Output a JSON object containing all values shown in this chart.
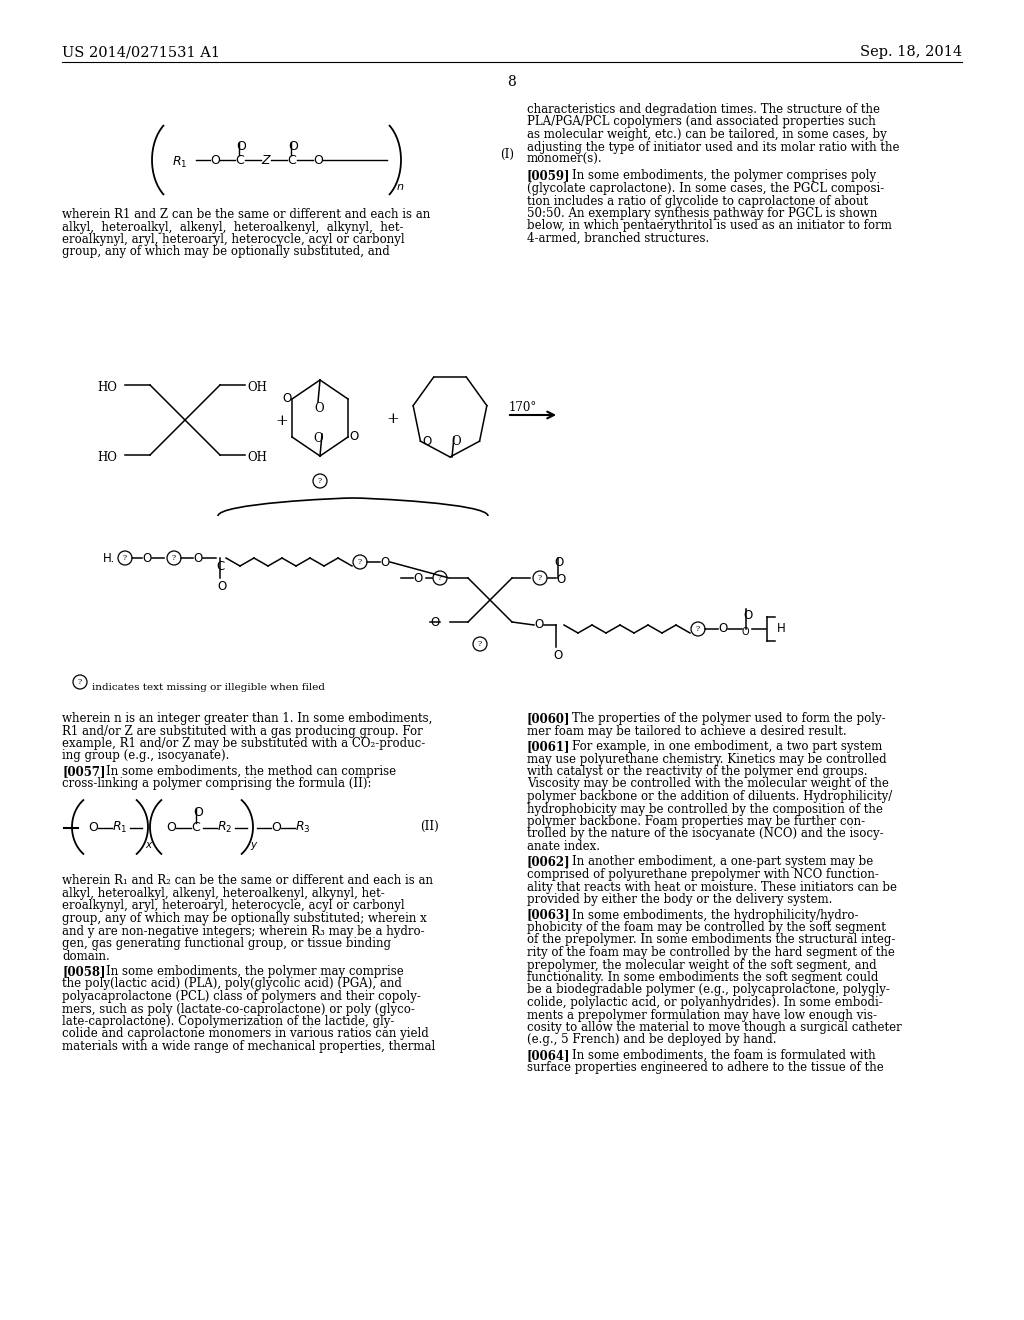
{
  "header_left": "US 2014/0271531 A1",
  "header_right": "Sep. 18, 2014",
  "page_number": "8",
  "background_color": "#ffffff",
  "text_color": "#000000",
  "rc_para1": [
    "characteristics and degradation times. The structure of the",
    "PLA/PGA/PCL copolymers (and associated properties such",
    "as molecular weight, etc.) can be tailored, in some cases, by",
    "adjusting the type of initiator used and its molar ratio with the",
    "monomer(s)."
  ],
  "rc_para2_tag": "[0059]",
  "rc_para2_intro": "In some embodiments, the polymer comprises poly",
  "rc_para2": [
    "(glycolate caprolactone). In some cases, the PGCL composi-",
    "tion includes a ratio of glycolide to caprolactone of about",
    "50:50. An exemplary synthesis pathway for PGCL is shown",
    "below, in which pentaerythritol is used as an initiator to form",
    "4-armed, branched structures."
  ],
  "lc_para1": [
    "wherein R1 and Z can be the same or different and each is an",
    "alkyl,  heteroalkyl,  alkenyl,  heteroalkenyl,  alkynyl,  het-",
    "eroalkynyl, aryl, heteroaryl, heterocycle, acyl or carbonyl",
    "group, any of which may be optionally substituted, and"
  ],
  "legend_text": "indicates text missing or illegible when filed",
  "lc_para3": [
    "wherein n is an integer greater than 1. In some embodiments,",
    "R1 and/or Z are substituted with a gas producing group. For",
    "example, R1 and/or Z may be substituted with a CO₂-produc-",
    "ing group (e.g., isocyanate)."
  ],
  "lc_para3_tag": "[0057]",
  "lc_para3_intro": "In some embodiments, the method can comprise",
  "lc_para3_b": "cross-linking a polymer comprising the formula (II):",
  "lc_para4": [
    "wherein R₁ and R₂ can be the same or different and each is an",
    "alkyl, heteroalkyl, alkenyl, heteroalkenyl, alkynyl, het-",
    "eroalkynyl, aryl, heteroaryl, heterocycle, acyl or carbonyl",
    "group, any of which may be optionally substituted; wherein x",
    "and y are non-negative integers; wherein R₃ may be a hydro-",
    "gen, gas generating functional group, or tissue binding",
    "domain."
  ],
  "lc_para5_tag": "[0058]",
  "lc_para5_intro": "In some embodiments, the polymer may comprise",
  "lc_para5": [
    "the poly(lactic acid) (PLA), poly(glycolic acid) (PGA), and",
    "polyacaprolactone (PCL) class of polymers and their copoly-",
    "mers, such as poly (lactate-co-caprolactone) or poly (glyco-",
    "late-caprolactone). Copolymerization of the lactide, gly-",
    "colide and caprolactone monomers in various ratios can yield",
    "materials with a wide range of mechanical properties, thermal"
  ],
  "rc_para3_tag": "[0060]",
  "rc_para3_intro": "The properties of the polymer used to form the poly-",
  "rc_para3": [
    "mer foam may be tailored to achieve a desired result."
  ],
  "rc_para4_tag": "[0061]",
  "rc_para4_intro": "For example, in one embodiment, a two part system",
  "rc_para4": [
    "may use polyurethane chemistry. Kinetics may be controlled",
    "with catalyst or the reactivity of the polymer end groups.",
    "Viscosity may be controlled with the molecular weight of the",
    "polymer backbone or the addition of diluents. Hydrophilicity/",
    "hydrophobicity may be controlled by the composition of the",
    "polymer backbone. Foam properties may be further con-",
    "trolled by the nature of the isocyanate (NCO) and the isocy-",
    "anate index."
  ],
  "rc_para5_tag": "[0062]",
  "rc_para5_intro": "In another embodiment, a one-part system may be",
  "rc_para5": [
    "comprised of polyurethane prepolymer with NCO function-",
    "ality that reacts with heat or moisture. These initiators can be",
    "provided by either the body or the delivery system."
  ],
  "rc_para6_tag": "[0063]",
  "rc_para6_intro": "In some embodiments, the hydrophilicity/hydro-",
  "rc_para6": [
    "phobicity of the foam may be controlled by the soft segment",
    "of the prepolymer. In some embodiments the structural integ-",
    "rity of the foam may be controlled by the hard segment of the",
    "prepolymer, the molecular weight of the soft segment, and",
    "functionality. In some embodiments the soft segment could",
    "be a biodegradable polymer (e.g., polycaprolactone, polygly-",
    "colide, polylactic acid, or polyanhydrides). In some embodi-",
    "ments a prepolymer formulation may have low enough vis-",
    "cosity to allow the material to move though a surgical catheter",
    "(e.g., 5 French) and be deployed by hand."
  ],
  "rc_para7_tag": "[0064]",
  "rc_para7_intro": "In some embodiments, the foam is formulated with",
  "rc_para7": [
    "surface properties engineered to adhere to the tissue of the"
  ]
}
